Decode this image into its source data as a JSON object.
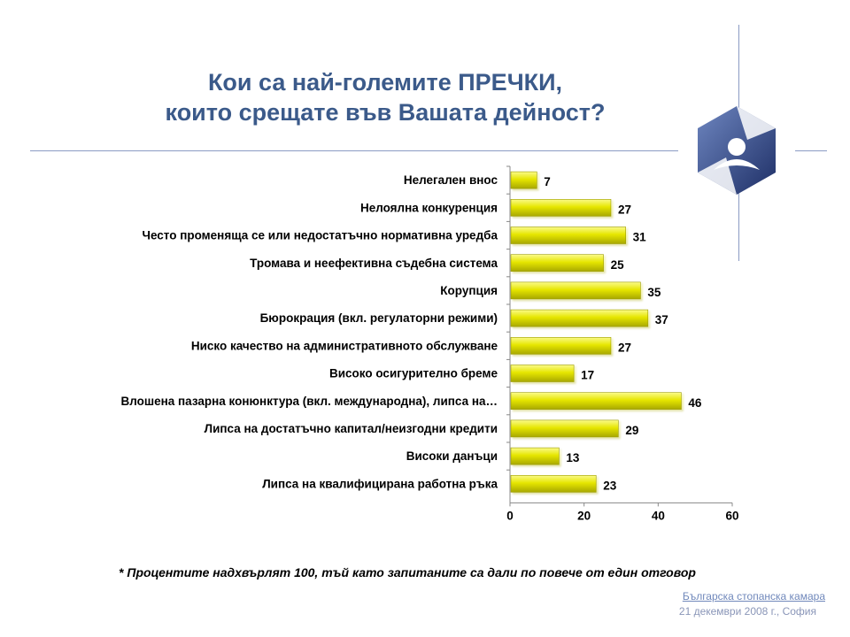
{
  "title": {
    "line1": "Кои са най-големите ПРЕЧКИ,",
    "line2": "които срещате във Вашата дейност?"
  },
  "chart_data": {
    "type": "bar",
    "orientation": "horizontal",
    "categories": [
      "Нелегален внос",
      "Нелоялна конкуренция",
      "Често променяща се или недостатъчно нормативна уредба",
      "Тромава и неефективна съдебна система",
      "Корупция",
      "Бюрокрация (вкл. регулаторни режими)",
      "Ниско качество на административното обслужване",
      "Високо осигурително бреме",
      "Влошена пазарна конюнктура (вкл. международна), липса на…",
      "Липса на достатъчно капитал/неизгодни кредити",
      "Високи данъци",
      "Липса на квалифицирана работна ръка"
    ],
    "values": [
      7,
      27,
      31,
      25,
      35,
      37,
      27,
      17,
      46,
      29,
      13,
      23
    ],
    "xlim": [
      0,
      60
    ],
    "xticks": [
      0,
      20,
      40,
      60
    ],
    "grid": false,
    "bar_color": "#e6e600",
    "bar_edge_color": "#9c9c00"
  },
  "footnote": "* Процентите надхвърлят 100, тъй като запитаните са дали по повече от един отговор",
  "organization": "Българска стопанска камара",
  "date": "21 декември 2008 г., София"
}
